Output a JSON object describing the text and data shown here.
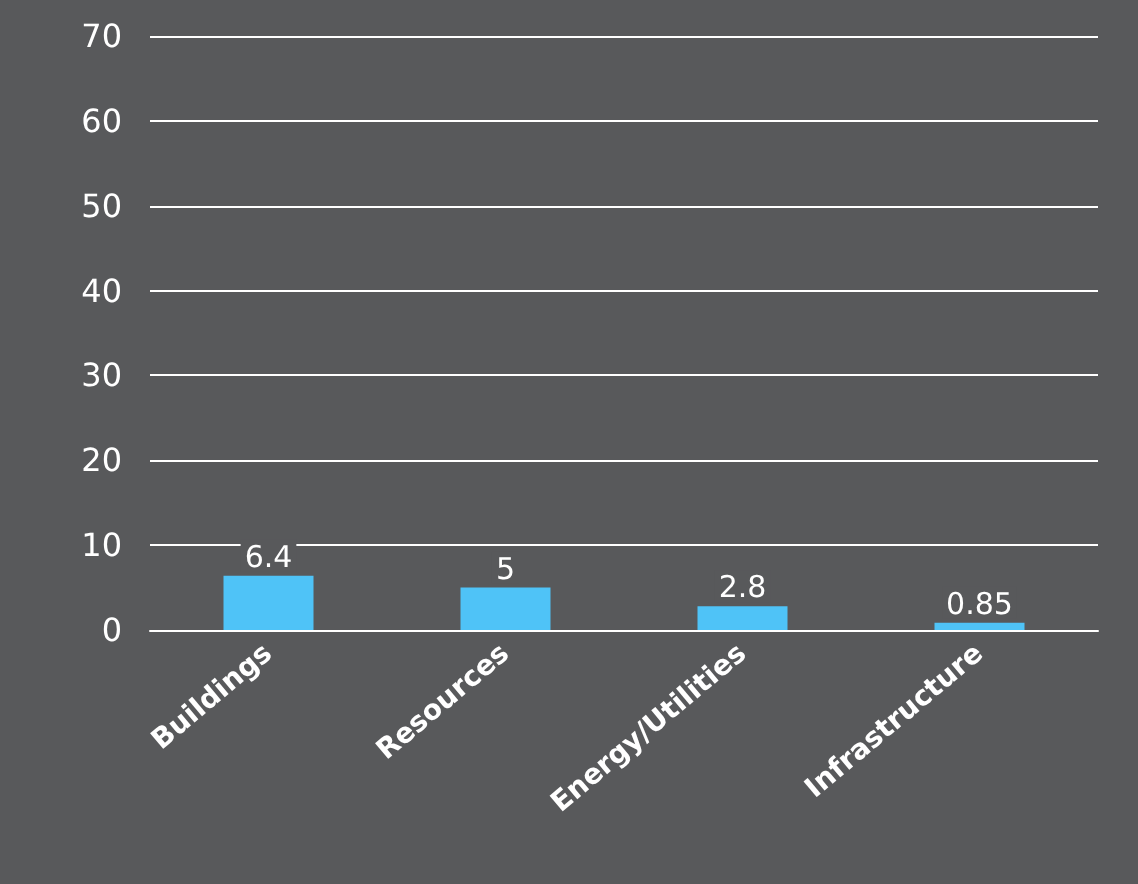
{
  "chart_data": {
    "type": "bar",
    "categories": [
      "Buildings",
      "Resources",
      "Energy/Utilities",
      "Infrastructure"
    ],
    "values": [
      6.4,
      5,
      2.8,
      0.85
    ],
    "color": "#4fc3f7",
    "ylim": [
      0,
      70
    ],
    "yticks": [
      0,
      10,
      20,
      30,
      40,
      50,
      60,
      70
    ],
    "grid": "y",
    "data_labels": true
  }
}
